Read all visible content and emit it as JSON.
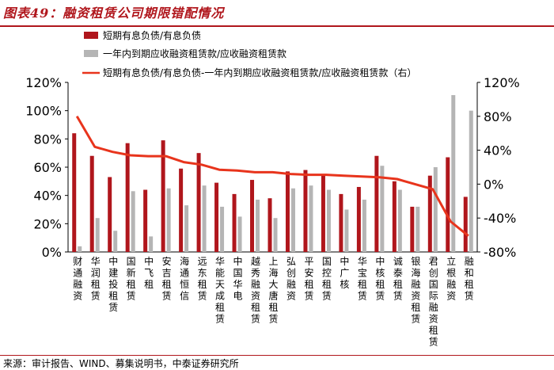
{
  "header": {
    "title": "图表49：融资租赁公司期限错配情况"
  },
  "footer": {
    "source": "来源：审计报告、WIND、募集说明书，中泰证券研究所"
  },
  "colors": {
    "accent": "#b0161c",
    "series1": "#b0161c",
    "series2": "#b5b5b5",
    "series3": "#e8341c"
  },
  "chart_data": {
    "type": "bar",
    "categories": [
      "财通融资",
      "华润租赁",
      "中建投租赁",
      "国新租赁",
      "中飞租",
      "安吉租赁",
      "海通恒信",
      "远东租赁",
      "华能天成租赁",
      "中国华电",
      "越秀融资租赁",
      "上海大唐租赁",
      "弘创融资",
      "平安租赁",
      "国控租赁",
      "中广核",
      "华宝租赁",
      "中核租赁",
      "诚泰租赁",
      "银海融资租赁",
      "君创国际融资租赁",
      "立根融资",
      "融和租赁"
    ],
    "series": [
      {
        "name": "短期有息负债/有息负债",
        "type": "bar",
        "axis": "left",
        "values": [
          0.84,
          0.68,
          0.53,
          0.77,
          0.44,
          0.79,
          0.59,
          0.7,
          0.49,
          0.41,
          0.51,
          0.38,
          0.57,
          0.58,
          0.54,
          0.41,
          0.46,
          0.68,
          0.5,
          0.32,
          0.54,
          0.67,
          0.39
        ]
      },
      {
        "name": "一年内到期应收融资租赁款/应收融资租赁款",
        "type": "bar",
        "axis": "left",
        "values": [
          0.04,
          0.24,
          0.15,
          0.43,
          0.11,
          0.45,
          0.33,
          0.47,
          0.32,
          0.25,
          0.37,
          0.24,
          0.45,
          0.47,
          0.44,
          0.3,
          0.37,
          0.61,
          0.44,
          0.32,
          0.6,
          1.11,
          1.0
        ]
      },
      {
        "name": "短期有息负债/有息负债-一年内到期应收融资租赁款/应收融资租赁款（右）",
        "type": "line",
        "axis": "right",
        "values": [
          0.8,
          0.44,
          0.38,
          0.34,
          0.33,
          0.33,
          0.26,
          0.23,
          0.17,
          0.16,
          0.14,
          0.14,
          0.12,
          0.11,
          0.11,
          0.1,
          0.09,
          0.08,
          0.06,
          0.0,
          -0.06,
          -0.44,
          -0.61
        ]
      }
    ],
    "y_left": {
      "lim": [
        0,
        1.2
      ],
      "ticks": [
        "0%",
        "20%",
        "40%",
        "60%",
        "80%",
        "100%",
        "120%"
      ]
    },
    "y_right": {
      "lim": [
        -0.8,
        1.2
      ],
      "ticks": [
        "-80%",
        "-40%",
        "0%",
        "40%",
        "80%",
        "120%"
      ]
    },
    "grid": false,
    "legend": "top-left"
  }
}
